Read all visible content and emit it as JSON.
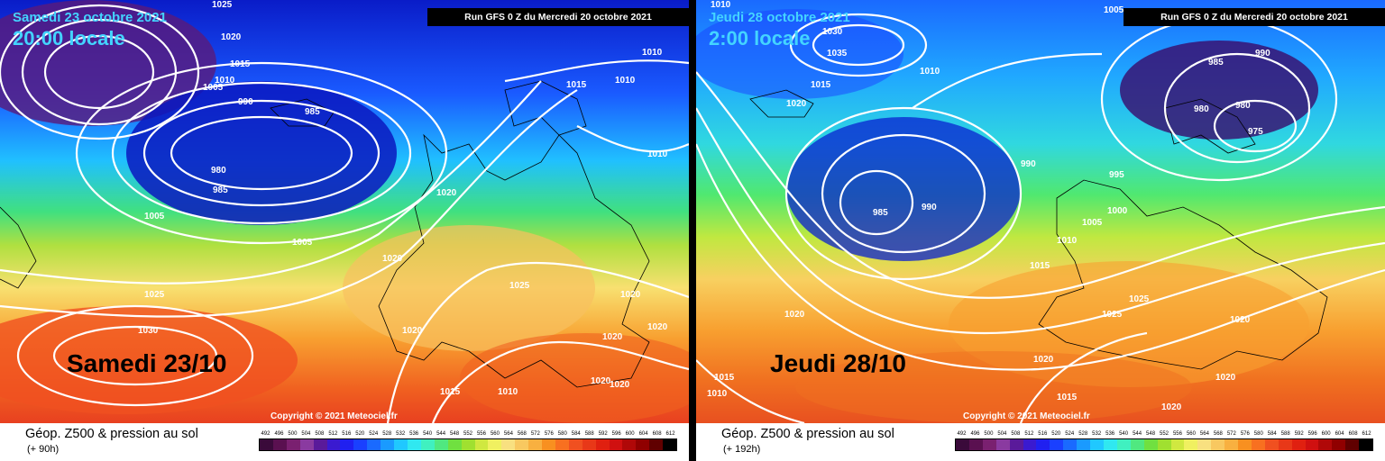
{
  "panels": [
    {
      "date": "Samedi 23 octobre 2021",
      "time": "20:00 locale",
      "run": "Run GFS 0 Z du Mercredi 20 octobre 2021",
      "big_label": "Samedi 23/10",
      "copyright": "Copyright © 2021 Meteociel.fr",
      "field": "Géop. Z500 & pression au sol",
      "lead": "(+ 90h)",
      "isobars": [
        "1025",
        "1020",
        "1015",
        "1010",
        "1005",
        "990",
        "985",
        "980",
        "985",
        "1005",
        "1005",
        "1025",
        "1030",
        "1020",
        "1015",
        "1010",
        "1010",
        "1020",
        "1020",
        "1025",
        "1020",
        "1020",
        "1020",
        "1020",
        "1015",
        "1010",
        "1020",
        "1020",
        "1010",
        "1015"
      ]
    },
    {
      "date": "Jeudi 28 octobre 2021",
      "time": "2:00 locale",
      "run": "Run GFS 0 Z du Mercredi 20 octobre 2021",
      "big_label": "Jeudi 28/10",
      "copyright": "Copyright © 2021 Meteociel.fr",
      "field": "Géop. Z500 & pression au sol",
      "lead": "(+ 192h)",
      "isobars": [
        "1010",
        "1030",
        "1035",
        "1015",
        "1020",
        "1010",
        "1005",
        "985",
        "990",
        "980",
        "980",
        "975",
        "990",
        "995",
        "985",
        "990",
        "1000",
        "1005",
        "1010",
        "1015",
        "1025",
        "1025",
        "1020",
        "1020",
        "1020",
        "1015",
        "1010",
        "1015",
        "1020",
        "1020"
      ]
    }
  ],
  "colorbar": {
    "ticks": [
      "492",
      "496",
      "500",
      "504",
      "508",
      "512",
      "516",
      "520",
      "524",
      "528",
      "532",
      "536",
      "540",
      "544",
      "548",
      "552",
      "556",
      "560",
      "564",
      "568",
      "572",
      "576",
      "580",
      "584",
      "588",
      "592",
      "596",
      "600",
      "604",
      "608",
      "612"
    ],
    "colors": [
      "#3a0a3a",
      "#5a1050",
      "#7a2070",
      "#8a3aa0",
      "#5a1a9a",
      "#3a1ad0",
      "#2020f0",
      "#1a40ff",
      "#1a6aff",
      "#1a9aff",
      "#20c8ff",
      "#30e8f0",
      "#40f0c0",
      "#50e880",
      "#70e040",
      "#a0e030",
      "#d0e840",
      "#f0f060",
      "#f8e080",
      "#f8c860",
      "#f8b040",
      "#f89020",
      "#f87020",
      "#f05020",
      "#e83818",
      "#e02010",
      "#d01010",
      "#b00808",
      "#900000",
      "#600000",
      "#000000"
    ]
  }
}
